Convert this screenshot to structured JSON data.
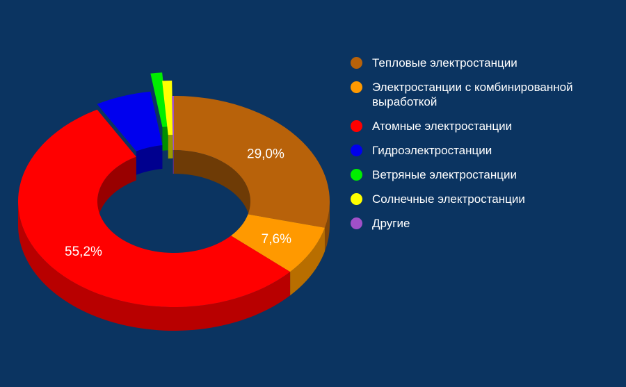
{
  "chart_data": {
    "type": "pie",
    "style": "3d-donut",
    "categories": [
      "Тепловые электростанции",
      "Электростанции с комбинированной выработкой",
      "Атомные электростанции",
      "Гидроэлектростанции",
      "Ветряные электростанции",
      "Солнечные электростанции",
      "Другие"
    ],
    "values": [
      29.0,
      7.6,
      55.2,
      5.8,
      1.2,
      1.0,
      0.2
    ],
    "colors": [
      "#b8620a",
      "#ff9900",
      "#ff0000",
      "#0000ee",
      "#00ee00",
      "#ffff00",
      "#a050c8"
    ],
    "data_labels": [
      "29,0%",
      "7,6%",
      "55,2%",
      "",
      "",
      "",
      ""
    ],
    "legend_position": "right",
    "legend": [
      {
        "label": "Тепловые электростанции",
        "color": "#b8620a"
      },
      {
        "label": "Электростанции с комбинированной выработкой",
        "color": "#ff9900"
      },
      {
        "label": "Атомные электростанции",
        "color": "#ff0000"
      },
      {
        "label": "Гидроэлектростанции",
        "color": "#0000ee"
      },
      {
        "label": "Ветряные электростанции",
        "color": "#00ee00"
      },
      {
        "label": "Солнечные электростанции",
        "color": "#ffff00"
      },
      {
        "label": "Другие",
        "color": "#a050c8"
      }
    ]
  }
}
